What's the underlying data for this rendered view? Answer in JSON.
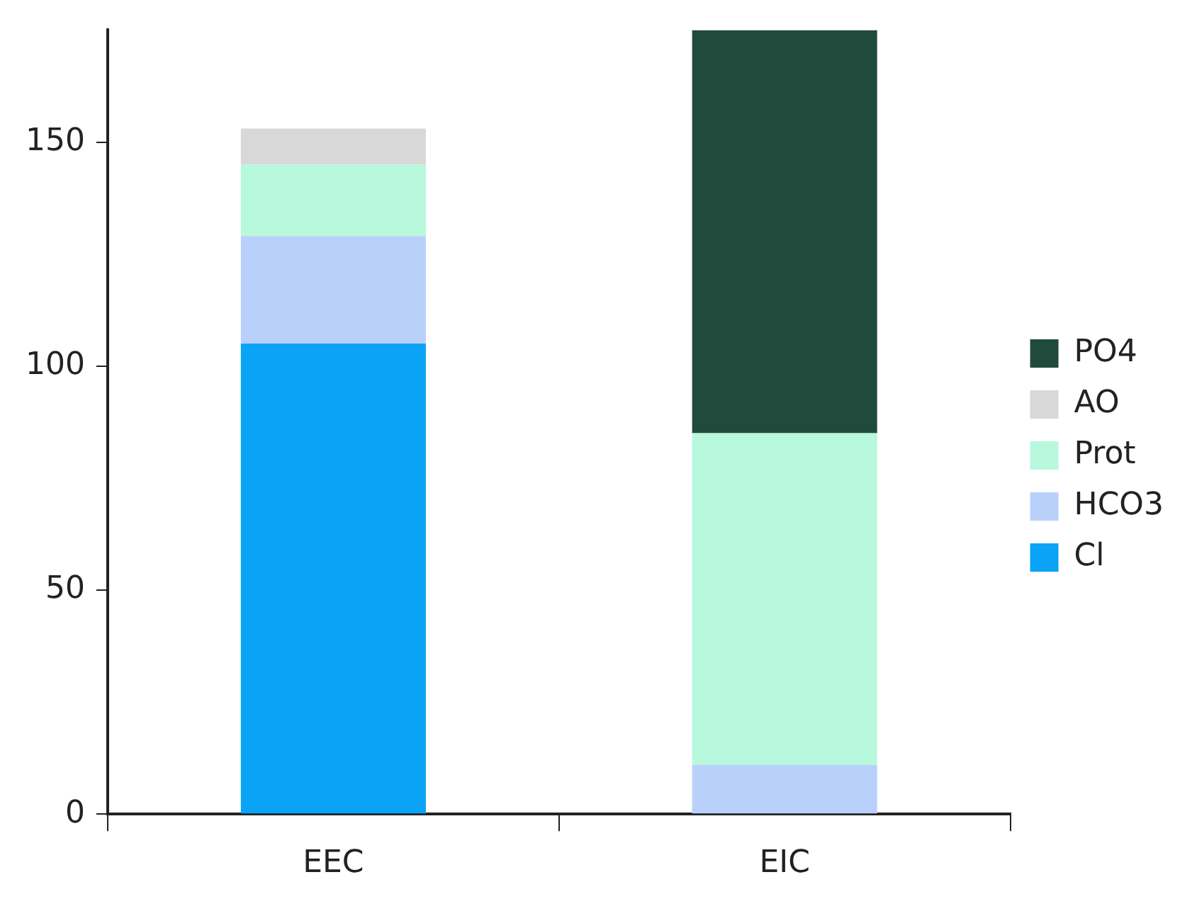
{
  "chart_data": {
    "type": "bar",
    "stacked": true,
    "categories": [
      "EEC",
      "EIC"
    ],
    "series": [
      {
        "name": "Cl",
        "color": "#0aa3f5",
        "values": [
          105,
          0
        ]
      },
      {
        "name": "HCO3",
        "color": "#b8d0fa",
        "values": [
          24,
          11
        ]
      },
      {
        "name": "Prot",
        "color": "#b8f8dc",
        "values": [
          16,
          74
        ]
      },
      {
        "name": "AO",
        "color": "#d8d8d8",
        "values": [
          8,
          0
        ]
      },
      {
        "name": "PO4",
        "color": "#204a3c",
        "values": [
          0,
          90
        ]
      }
    ],
    "ylim": [
      0,
      175
    ],
    "yticks": [
      0,
      50,
      100,
      150
    ],
    "grid": false,
    "legend": "right"
  }
}
